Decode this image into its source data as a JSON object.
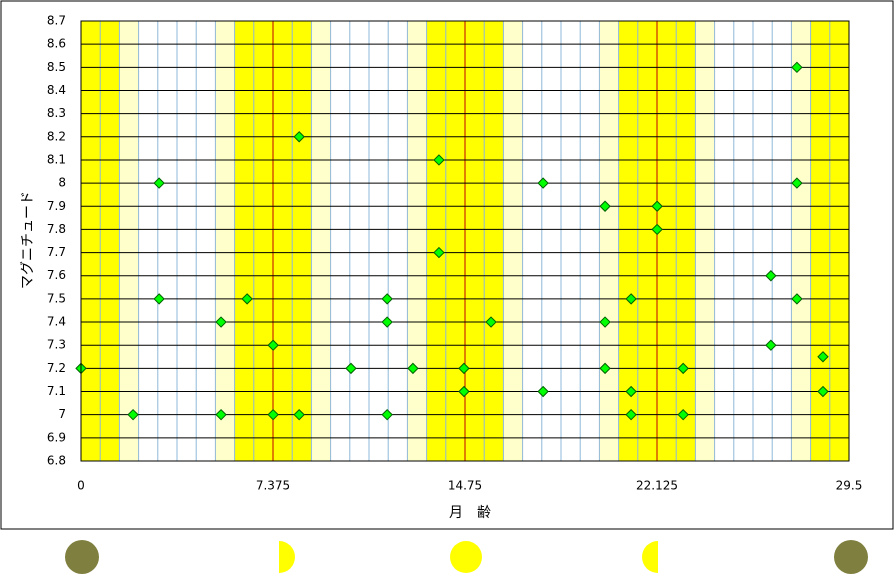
{
  "chart_data": {
    "type": "scatter",
    "x_label": "月　齢",
    "y_label": "マグニチュード",
    "xlim": [
      0,
      29.5
    ],
    "xticks": [
      0,
      7.375,
      14.75,
      22.125,
      29.5
    ],
    "ylim": [
      6.8,
      8.7
    ],
    "yticks": [
      6.8,
      6.9,
      7,
      7.1,
      7.2,
      7.3,
      7.4,
      7.5,
      7.6,
      7.7,
      7.8,
      7.9,
      8,
      8.1,
      8.2,
      8.3,
      8.4,
      8.5,
      8.6,
      8.7
    ],
    "grid": true,
    "color": "#00ff00",
    "x": [
      0,
      2,
      3,
      3,
      5.38,
      5.38,
      6.38,
      7.38,
      7.38,
      8.38,
      8.38,
      10.37,
      11.76,
      11.76,
      11.76,
      12.75,
      13.75,
      13.75,
      14.71,
      14.71,
      15.75,
      17.75,
      17.75,
      20.13,
      20.13,
      20.13,
      21.13,
      21.13,
      21.13,
      22.13,
      22.13,
      23.13,
      23.13,
      26.5,
      26.5,
      27.5,
      27.5,
      27.5,
      28.5,
      28.5
    ],
    "values": [
      7.2,
      7.0,
      8.0,
      7.5,
      7.4,
      7.0,
      7.5,
      7.3,
      7.0,
      8.2,
      7.0,
      7.2,
      7.5,
      7.4,
      7.0,
      7.2,
      8.1,
      7.7,
      7.2,
      7.1,
      7.4,
      8.0,
      7.1,
      7.9,
      7.4,
      7.2,
      7.5,
      7.1,
      7.0,
      7.9,
      7.8,
      7.2,
      7.0,
      7.6,
      7.3,
      8.5,
      8.0,
      7.5,
      7.25,
      7.1
    ]
  }
}
